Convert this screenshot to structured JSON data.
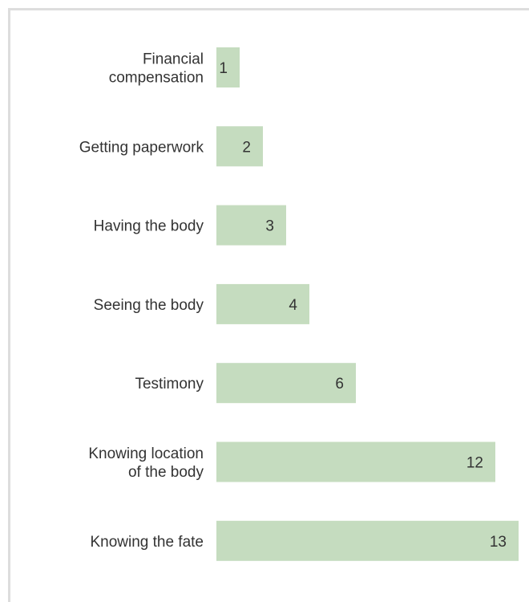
{
  "chart_data": {
    "type": "bar",
    "orientation": "horizontal",
    "categories": [
      [
        "Financial",
        "compensation"
      ],
      [
        "Getting paperwork"
      ],
      [
        "Having the body"
      ],
      [
        "Seeing the body"
      ],
      [
        "Testimony"
      ],
      [
        "Knowing location",
        "of the body"
      ],
      [
        "Knowing the fate"
      ]
    ],
    "values": [
      1,
      2,
      3,
      4,
      6,
      12,
      13
    ],
    "bar_color": "#c5dcbf",
    "frame_color": "#dddddd",
    "text_color": "#333333",
    "xlim": [
      0,
      13
    ],
    "grid": false,
    "title": "",
    "xlabel": "",
    "ylabel": ""
  }
}
